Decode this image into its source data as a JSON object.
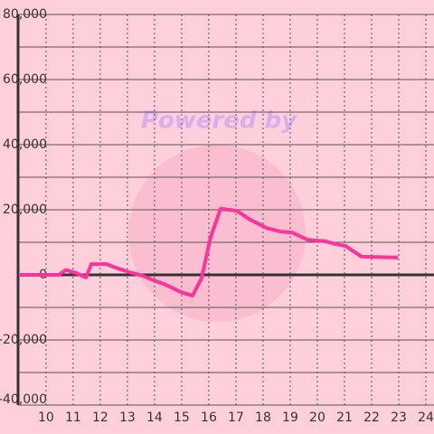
{
  "chart_data": {
    "type": "line",
    "watermark": "Powered by",
    "x": [
      9.0,
      10.47,
      10.73,
      11.13,
      11.47,
      11.67,
      12.23,
      12.57,
      13.07,
      13.57,
      13.97,
      14.4,
      14.97,
      15.4,
      15.73,
      16.07,
      16.43,
      17.03,
      17.47,
      18.13,
      18.63,
      19.07,
      19.63,
      20.3,
      20.7,
      21.03,
      21.63,
      22.97
    ],
    "series": [
      {
        "color": "#ff3399",
        "values": [
          0,
          0,
          1500,
          500,
          -800,
          3300,
          3300,
          2200,
          800,
          -300,
          -1700,
          -3000,
          -5300,
          -6400,
          -1100,
          11700,
          20300,
          19700,
          17200,
          14400,
          13300,
          13000,
          10800,
          10300,
          9400,
          8900,
          5600,
          5300
        ]
      }
    ],
    "xlim": [
      8.97,
      24.3
    ],
    "xticks": [
      10,
      11,
      12,
      13,
      14,
      15,
      16,
      17,
      18,
      19,
      20,
      21,
      22,
      23,
      24
    ],
    "ylim": [
      -40000,
      80000
    ],
    "yticks": [
      {
        "value": -40000,
        "label": "-40,000"
      },
      {
        "value": -20000,
        "label": "-20,000"
      },
      0,
      {
        "value": 20000,
        "label": "20,000"
      },
      {
        "value": 40000,
        "label": "40,000"
      },
      {
        "value": 60000,
        "label": "60,000"
      },
      {
        "value": 80000,
        "label": "80,000"
      }
    ],
    "grid": true
  }
}
